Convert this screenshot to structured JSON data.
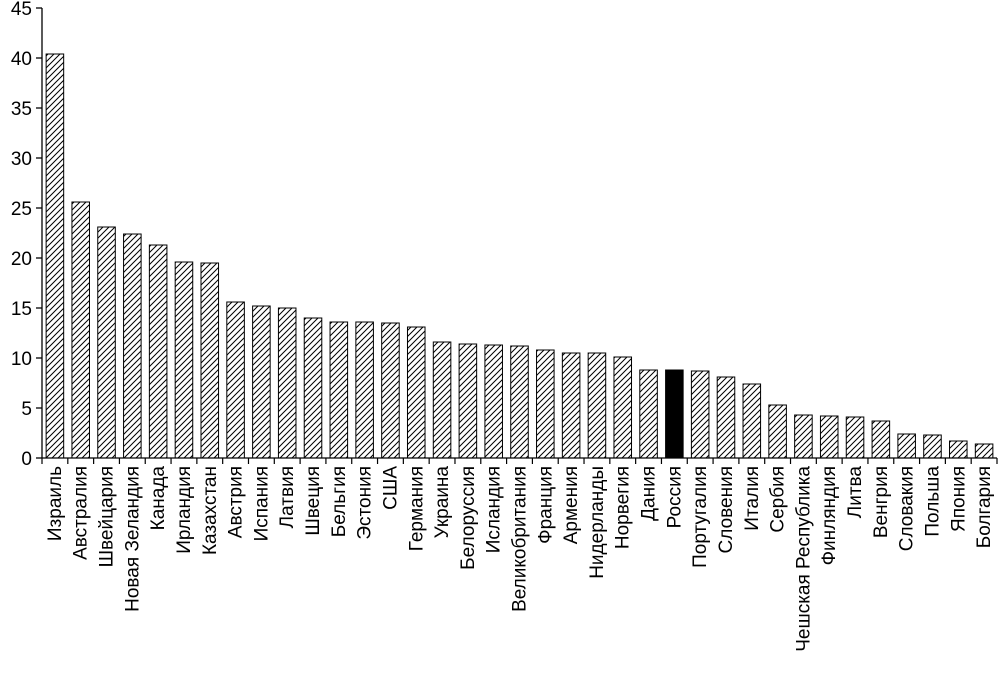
{
  "chart_data": {
    "type": "bar",
    "title": "",
    "xlabel": "",
    "ylabel": "",
    "ylim": [
      0,
      45
    ],
    "yticks": [
      "0",
      "5",
      "10",
      "15",
      "20",
      "25",
      "30",
      "35",
      "40",
      "45"
    ],
    "grid": false,
    "legend": "none",
    "bar_fill": "hatched",
    "highlight_category": "Россия",
    "highlight_color": "#000000",
    "categories": [
      "Израиль",
      "Австралия",
      "Швейцария",
      "Новая Зеландия",
      "Канада",
      "Ирландия",
      "Казахстан",
      "Австрия",
      "Испания",
      "Латвия",
      "Швеция",
      "Бельгия",
      "Эстония",
      "США",
      "Германия",
      "Украина",
      "Белоруссия",
      "Исландия",
      "Великобритания",
      "Франция",
      "Армения",
      "Нидерланды",
      "Норвегия",
      "Дания",
      "Россия",
      "Португалия",
      "Словения",
      "Италия",
      "Сербия",
      "Чешская Республика",
      "Финляндия",
      "Литва",
      "Венгрия",
      "Словакия",
      "Польша",
      "Япония",
      "Болгария"
    ],
    "values": [
      40.4,
      25.6,
      23.1,
      22.4,
      21.3,
      19.6,
      19.5,
      15.6,
      15.2,
      15.0,
      14.0,
      13.6,
      13.6,
      13.5,
      13.1,
      11.6,
      11.4,
      11.3,
      11.2,
      10.8,
      10.5,
      10.5,
      10.1,
      8.8,
      8.8,
      8.7,
      8.1,
      7.4,
      5.3,
      4.3,
      4.2,
      4.1,
      3.7,
      2.4,
      2.3,
      1.7,
      1.4
    ]
  }
}
